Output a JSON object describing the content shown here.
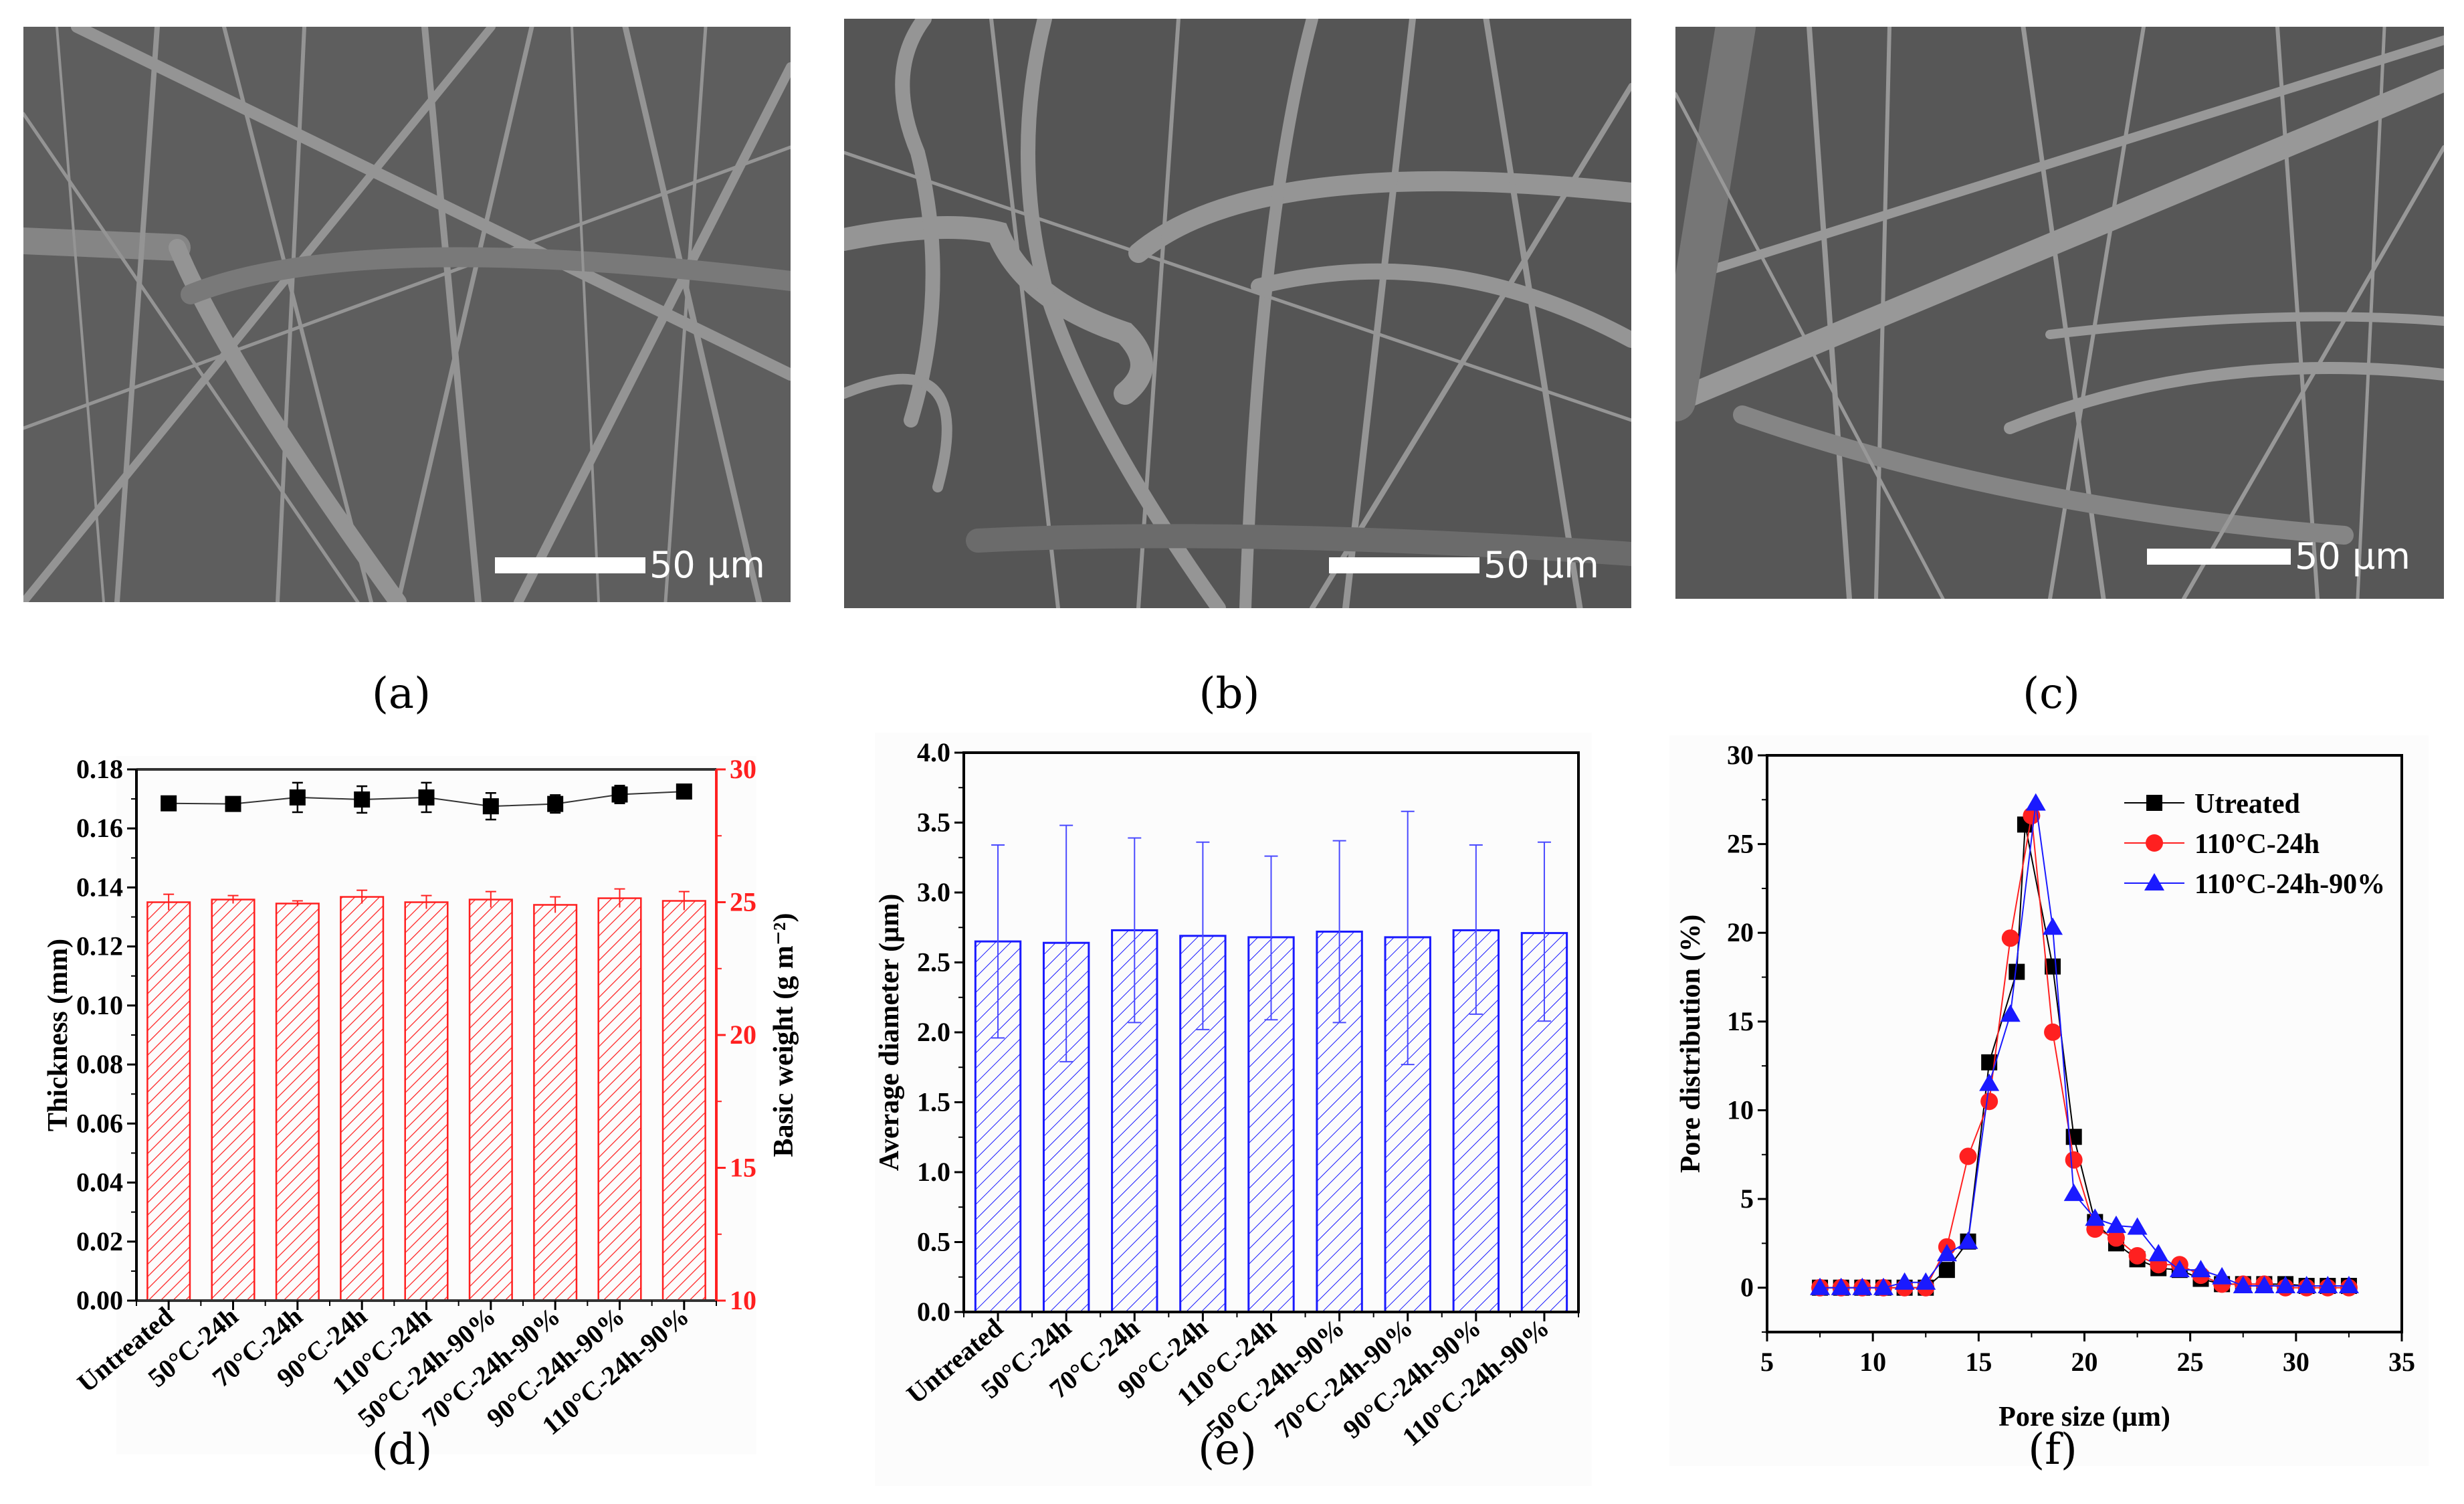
{
  "figure": {
    "panel_labels": {
      "a": "(a)",
      "b": "(b)",
      "c": "(c)",
      "d": "(d)",
      "e": "(e)",
      "f": "(f)"
    },
    "sem_images": [
      {
        "id": "a",
        "scale_bar_label": "50 µm",
        "description": "SEM micrograph of untreated fibrous membrane"
      },
      {
        "id": "b",
        "scale_bar_label": "50 µm",
        "description": "SEM micrograph of 110°C-24h treated membrane"
      },
      {
        "id": "c",
        "scale_bar_label": "50 µm",
        "description": "SEM micrograph of 110°C-24h-90% treated membrane"
      }
    ],
    "colors": {
      "black": "#000000",
      "red": "#ff2020",
      "blue": "#1a1aff",
      "sem_bg": "#6a6a6a"
    }
  },
  "chart_data": [
    {
      "panel": "d",
      "type": "bar",
      "title": "",
      "categories": [
        "Untreated",
        "50°C-24h",
        "70°C-24h",
        "90°C-24h",
        "110°C-24h",
        "50°C-24h-90%",
        "70°C-24h-90%",
        "90°C-24h-90%",
        "110°C-24h-90%"
      ],
      "xlabel": "",
      "ylabel": "Thickness (mm)",
      "ylabel_right": "Basic weight (g m⁻²)",
      "ylim": [
        0,
        0.18
      ],
      "ylim_right": [
        10,
        30
      ],
      "yticks": [
        "0.00",
        "0.02",
        "0.04",
        "0.06",
        "0.08",
        "0.10",
        "0.12",
        "0.14",
        "0.16",
        "0.18"
      ],
      "yticks_right": [
        "10",
        "15",
        "20",
        "25",
        "30"
      ],
      "grid": false,
      "series": [
        {
          "name": "Thickness",
          "kind": "line-scatter",
          "axis": "left",
          "color": "#000000",
          "marker": "square",
          "values": [
            0.1685,
            0.1683,
            0.1705,
            0.1698,
            0.1705,
            0.1675,
            0.1683,
            0.1715,
            0.1725
          ],
          "errors": [
            0.001,
            0.0015,
            0.005,
            0.0045,
            0.005,
            0.0045,
            0.003,
            0.003,
            0.0015
          ]
        },
        {
          "name": "Basic weight",
          "kind": "bar",
          "axis": "right",
          "color": "#ff2020",
          "pattern": "hatched",
          "values": [
            25.0,
            25.1,
            24.95,
            25.2,
            25.0,
            25.1,
            24.9,
            25.15,
            25.05
          ],
          "errors": [
            0.3,
            0.15,
            0.1,
            0.25,
            0.25,
            0.3,
            0.3,
            0.35,
            0.35
          ]
        }
      ]
    },
    {
      "panel": "e",
      "type": "bar",
      "title": "",
      "categories": [
        "Untreated",
        "50°C-24h",
        "70°C-24h",
        "90°C-24h",
        "110°C-24h",
        "50°C-24h-90%",
        "70°C-24h-90%",
        "90°C-24h-90%",
        "110°C-24h-90%"
      ],
      "xlabel": "",
      "ylabel": "Average diameter (µm)",
      "ylim": [
        0,
        4.0
      ],
      "yticks": [
        "0.0",
        "0.5",
        "1.0",
        "1.5",
        "2.0",
        "2.5",
        "3.0",
        "3.5",
        "4.0"
      ],
      "grid": false,
      "series": [
        {
          "name": "Average diameter",
          "color": "#1a1aff",
          "pattern": "hatched",
          "values": [
            2.65,
            2.64,
            2.73,
            2.69,
            2.68,
            2.72,
            2.68,
            2.73,
            2.71
          ],
          "err_high": [
            3.34,
            3.48,
            3.39,
            3.36,
            3.26,
            3.37,
            3.58,
            3.34,
            3.36
          ],
          "err_low": [
            1.96,
            1.79,
            2.07,
            2.02,
            2.09,
            2.07,
            1.77,
            2.13,
            2.08
          ]
        }
      ]
    },
    {
      "panel": "f",
      "type": "line",
      "title": "",
      "xlabel": "Pore size (µm)",
      "ylabel": "Pore distribution (%)",
      "xlim": [
        5,
        35
      ],
      "ylim": [
        -2.5,
        30
      ],
      "xticks": [
        "5",
        "10",
        "15",
        "20",
        "25",
        "30",
        "35"
      ],
      "yticks": [
        "0",
        "5",
        "10",
        "15",
        "20",
        "25",
        "30"
      ],
      "grid": false,
      "legend_position": "upper right",
      "series": [
        {
          "name": "Utreated",
          "color": "#000000",
          "marker": "square",
          "x": [
            7.5,
            8.5,
            9.5,
            10.5,
            11.5,
            12.5,
            13.5,
            14.5,
            15.5,
            16.8,
            17.2,
            18.5,
            19.5,
            20.5,
            21.5,
            22.5,
            23.5,
            24.5,
            25.5,
            26.5,
            27.5,
            28.5,
            29.5,
            30.5,
            31.5,
            32.5
          ],
          "y": [
            0,
            0,
            0,
            0,
            0,
            0,
            1.0,
            2.6,
            12.7,
            17.8,
            26.1,
            18.1,
            8.5,
            3.7,
            2.5,
            1.6,
            1.1,
            1.0,
            0.5,
            0.2,
            0.2,
            0.2,
            0.2,
            0.1,
            0.1,
            0.1
          ]
        },
        {
          "name": "110°C-24h",
          "color": "#ff2020",
          "marker": "circle",
          "x": [
            7.5,
            8.5,
            9.5,
            10.5,
            11.5,
            12.5,
            13.5,
            14.5,
            15.5,
            16.5,
            17.5,
            18.5,
            19.5,
            20.5,
            21.5,
            22.5,
            23.5,
            24.5,
            25.5,
            26.5,
            27.5,
            28.5,
            29.5,
            30.5,
            31.5,
            32.5
          ],
          "y": [
            0,
            0,
            0,
            0,
            0,
            0,
            2.3,
            7.4,
            10.5,
            19.7,
            26.6,
            14.4,
            7.2,
            3.3,
            2.8,
            1.8,
            1.3,
            1.3,
            0.7,
            0.2,
            0.2,
            0.2,
            0.0,
            0.0,
            0.0,
            0.0
          ]
        },
        {
          "name": "110°C-24h-90%",
          "color": "#1a1aff",
          "marker": "triangle",
          "x": [
            7.5,
            8.5,
            9.5,
            10.5,
            11.5,
            12.5,
            13.5,
            14.5,
            15.5,
            16.5,
            17.7,
            18.5,
            19.5,
            20.5,
            21.5,
            22.5,
            23.5,
            24.5,
            25.5,
            26.5,
            27.5,
            28.5,
            29.5,
            30.5,
            31.5,
            32.5
          ],
          "y": [
            0,
            0,
            0,
            0,
            0.3,
            0.3,
            1.9,
            2.6,
            11.5,
            15.4,
            27.3,
            20.3,
            5.3,
            3.9,
            3.5,
            3.4,
            1.9,
            1.0,
            1.0,
            0.6,
            0.1,
            0.1,
            0.1,
            0.1,
            0.1,
            0.1
          ]
        }
      ]
    }
  ]
}
